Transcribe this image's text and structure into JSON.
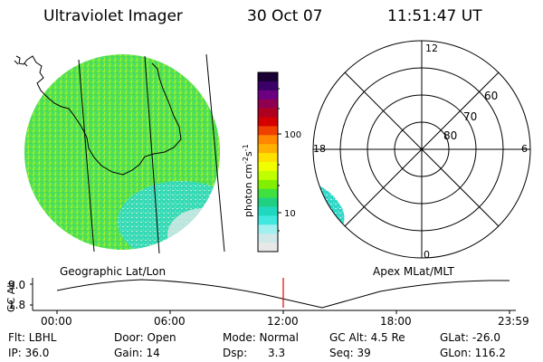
{
  "header": {
    "title": "Ultraviolet Imager",
    "date": "30 Oct 07",
    "time": "11:51:47 UT"
  },
  "colorbar": {
    "unit_label": "photon cm",
    "unit_exp1": "-2",
    "unit_mid": "s",
    "unit_exp2": "-1",
    "tick_100": "100",
    "tick_10": "10",
    "colors": [
      "#1a0033",
      "#3a0066",
      "#6b0080",
      "#900050",
      "#b00020",
      "#d40000",
      "#f04000",
      "#ff8800",
      "#ffb000",
      "#ffe000",
      "#f0ff00",
      "#c0ff00",
      "#80f000",
      "#40e040",
      "#20d080",
      "#20d8c0",
      "#40e8e0",
      "#a0f0f0",
      "#d0e8e8",
      "#e8e8e8"
    ]
  },
  "polar": {
    "lbl_12": "12",
    "lbl_18": "18",
    "lbl_6": "6",
    "lbl_0": "0",
    "lbl_60": "60",
    "lbl_70": "70",
    "lbl_80": "80"
  },
  "footers": {
    "geo": "Geographic Lat/Lon",
    "apex": "Apex MLat/MLT"
  },
  "altplot": {
    "ylabel": "GC Alt",
    "y_top": "9.0",
    "y_bottom": "1.8",
    "x_ticks": [
      "00:00",
      "06:00",
      "12:00",
      "18:00",
      "23:59"
    ],
    "marker_color": "#e00000"
  },
  "status": {
    "flt": "Flt: LBHL",
    "ip": "IP: 36.0",
    "door": "Door: Open",
    "gain": "Gain: 14",
    "mode": "Mode: Normal",
    "dsp": "Dsp:      3.3",
    "gcalt": "GC Alt: 4.5 Re",
    "seq": "Seq: 39",
    "glat": "GLat: -26.0",
    "glon": "GLon: 116.2"
  }
}
